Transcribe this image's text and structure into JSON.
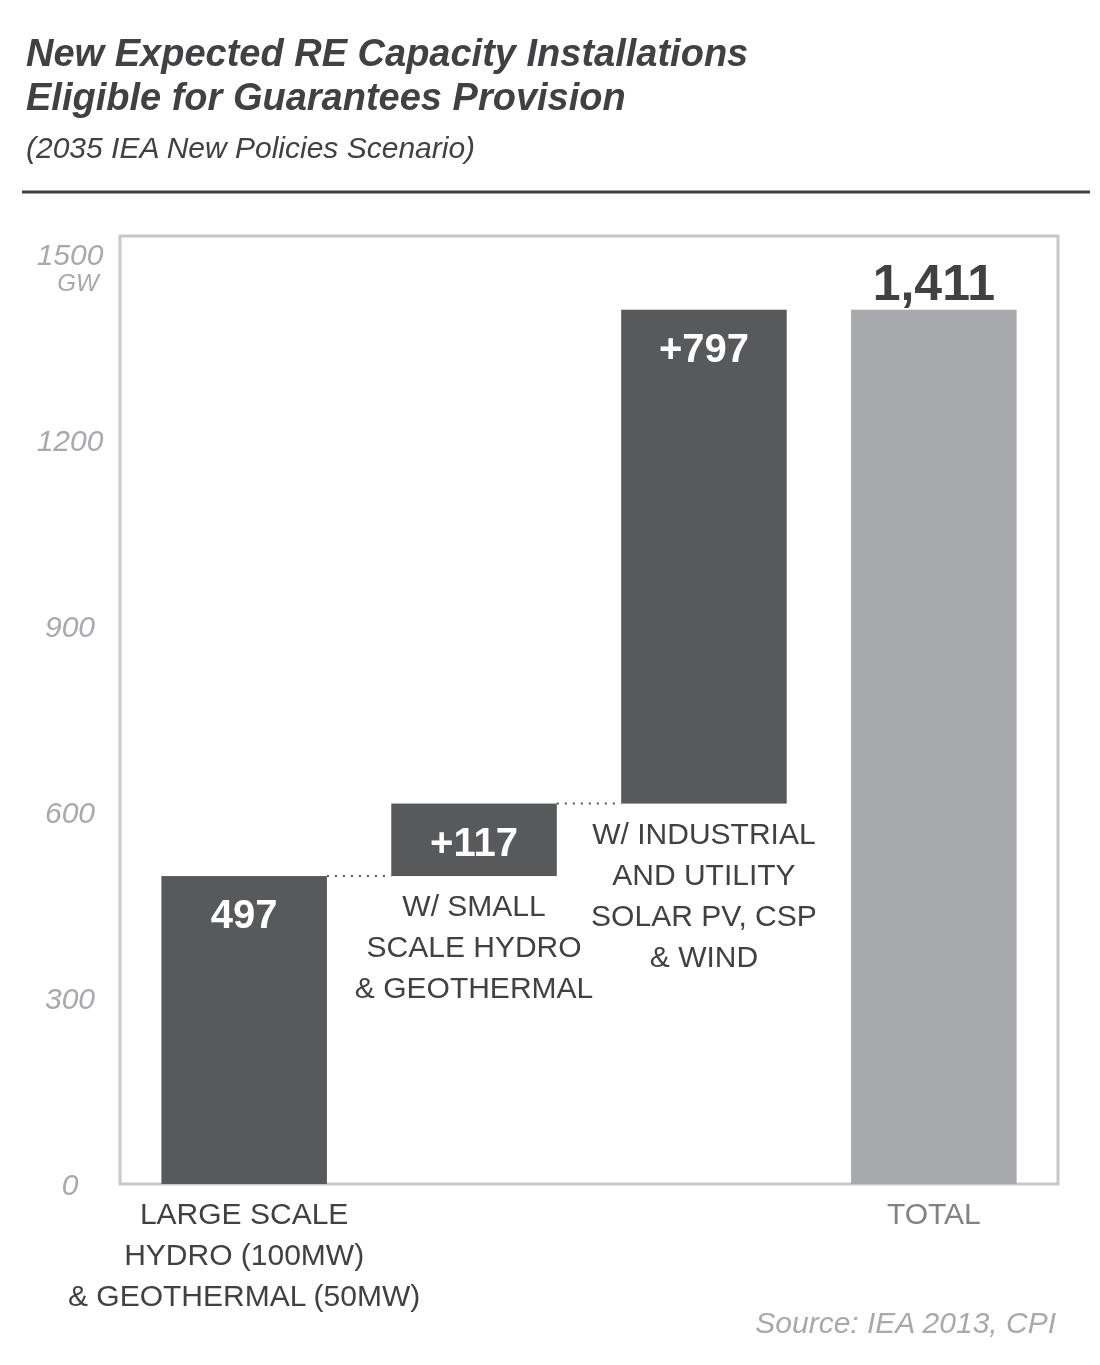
{
  "chart_data": {
    "type": "bar",
    "title": "New Expected RE Capacity Installations\nEligible for Guarantees Provision",
    "subtitle": "(2035 IEA New Policies Scenario)",
    "ylabel": "GW",
    "categories": [
      "LARGE SCALE\nHYDRO (100MW)\n& GEOTHERMAL (50MW)",
      "W/ SMALL\nSCALE HYDRO\n& GEOTHERMAL",
      "W/ INDUSTRIAL\nAND UTILITY\nSOLAR PV, CSP\n& WIND",
      "TOTAL"
    ],
    "values": [
      497,
      117,
      797,
      1411
    ],
    "base": [
      0,
      497,
      614,
      0
    ],
    "colors": [
      "#58595b",
      "#58595b",
      "#58595b",
      "#a7a9ac"
    ],
    "value_labels": [
      "497",
      "+117",
      "+797",
      "1,411"
    ],
    "ylim": [
      0,
      1530
    ],
    "yticks": [
      0,
      300,
      600,
      900,
      1200,
      1500
    ],
    "annotations": [
      "Source: IEA 2013, CPI"
    ]
  }
}
